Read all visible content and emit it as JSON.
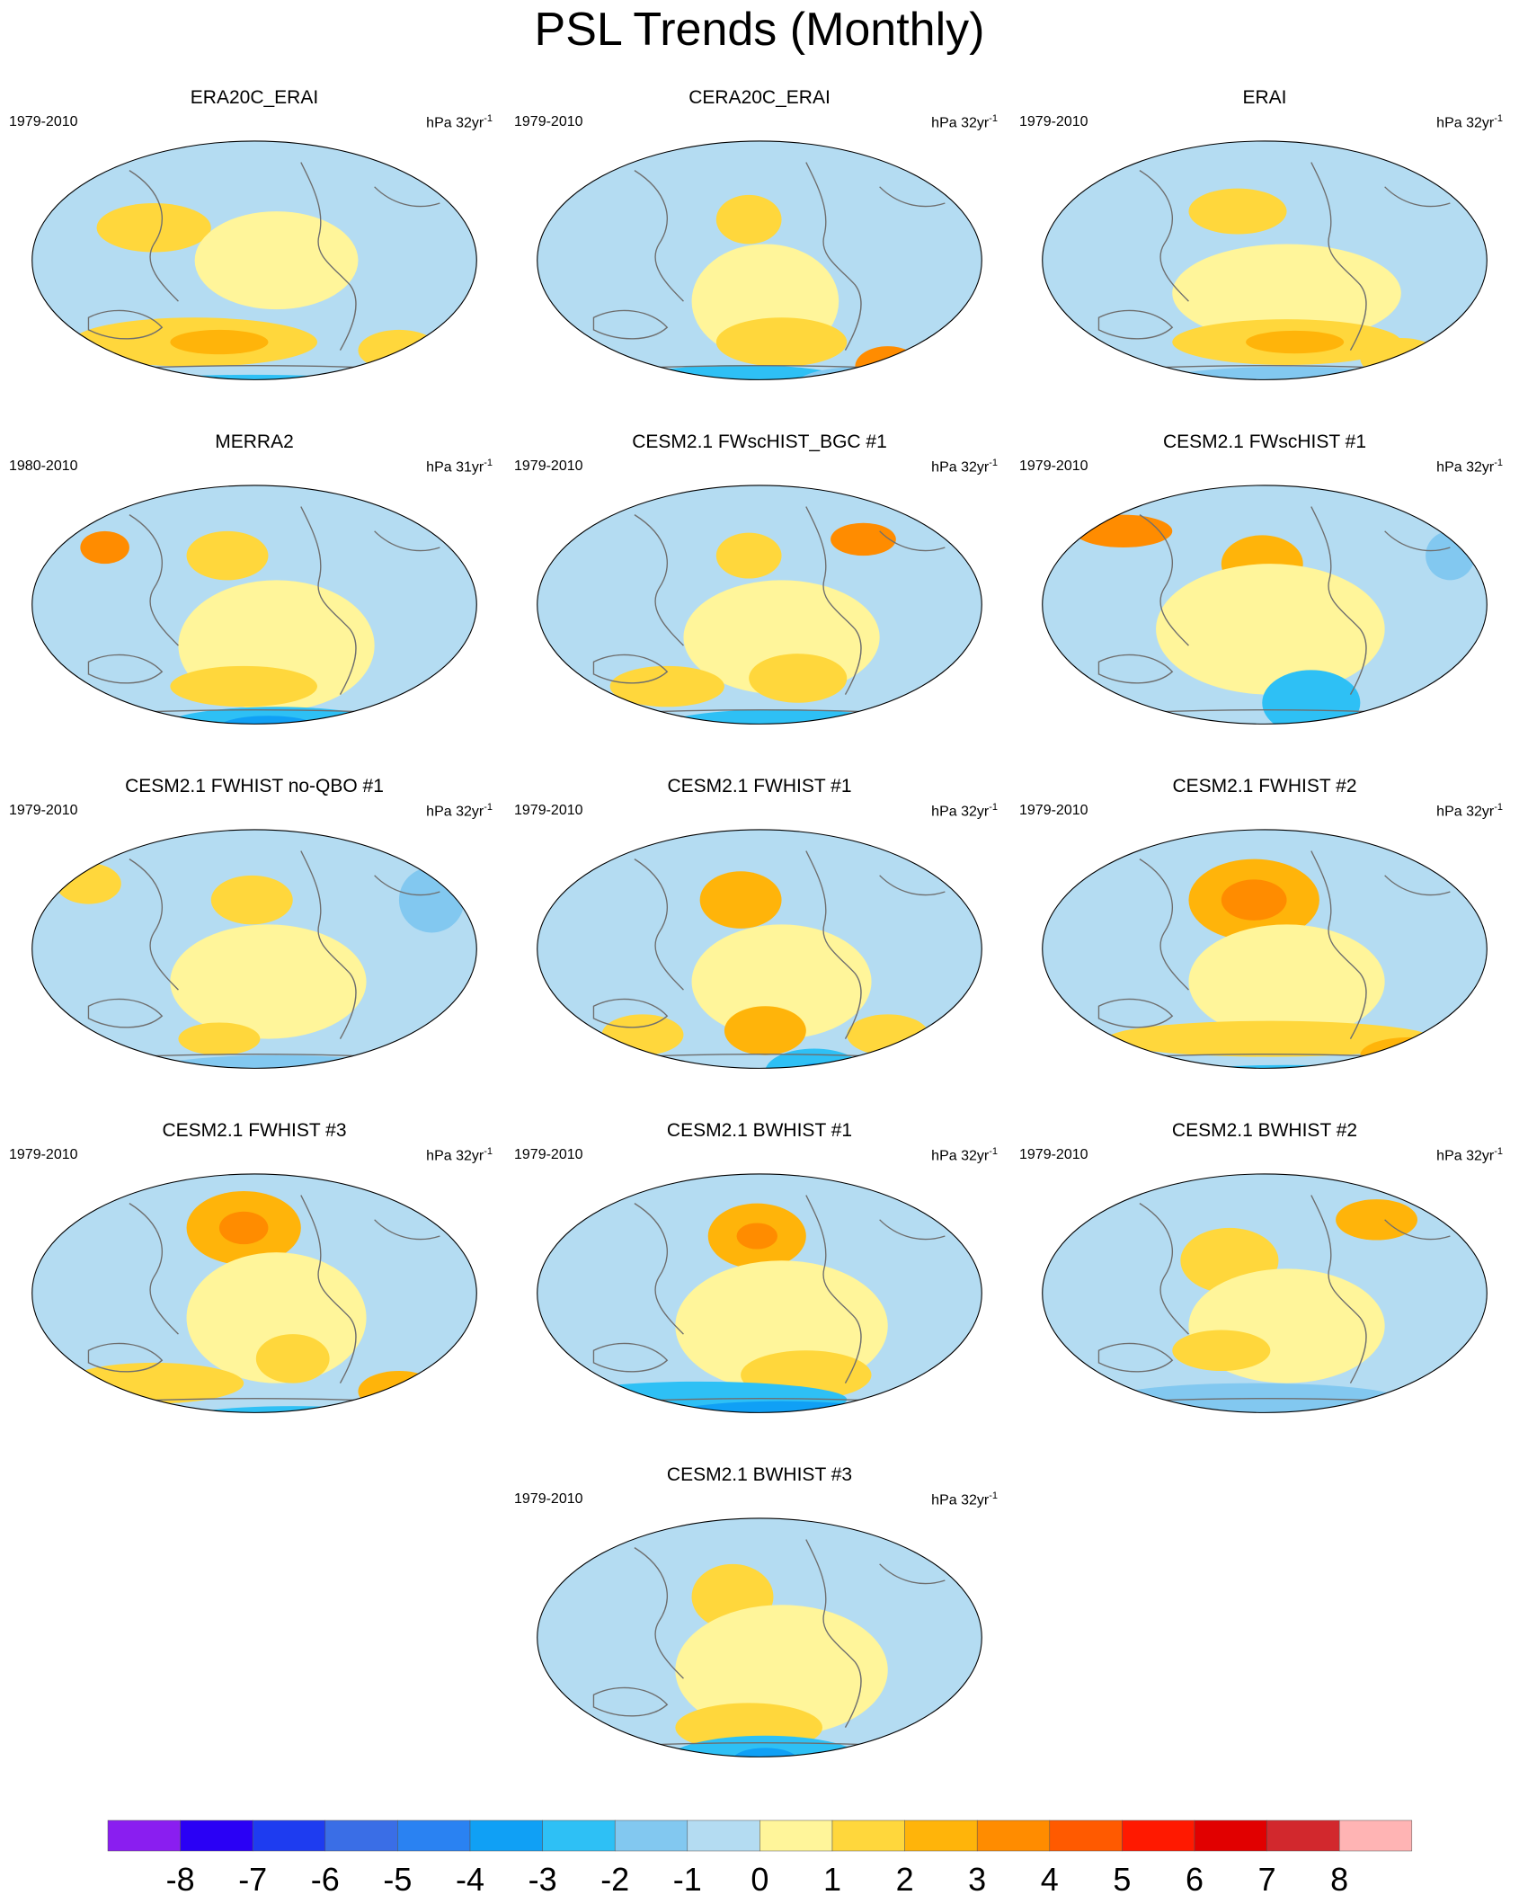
{
  "title": "PSL Trends (Monthly)",
  "panels": [
    {
      "title": "ERA20C_ERAI",
      "period": "1979-2010",
      "units": "hPa 32yr",
      "units_exp": "-1"
    },
    {
      "title": "CERA20C_ERAI",
      "period": "1979-2010",
      "units": "hPa 32yr",
      "units_exp": "-1"
    },
    {
      "title": "ERAI",
      "period": "1979-2010",
      "units": "hPa 32yr",
      "units_exp": "-1"
    },
    {
      "title": "MERRA2",
      "period": "1980-2010",
      "units": "hPa 31yr",
      "units_exp": "-1"
    },
    {
      "title": "CESM2.1 FWscHIST_BGC #1",
      "period": "1979-2010",
      "units": "hPa 32yr",
      "units_exp": "-1"
    },
    {
      "title": "CESM2.1 FWscHIST #1",
      "period": "1979-2010",
      "units": "hPa 32yr",
      "units_exp": "-1"
    },
    {
      "title": "CESM2.1 FWHIST no-QBO #1",
      "period": "1979-2010",
      "units": "hPa 32yr",
      "units_exp": "-1"
    },
    {
      "title": "CESM2.1 FWHIST #1",
      "period": "1979-2010",
      "units": "hPa 32yr",
      "units_exp": "-1"
    },
    {
      "title": "CESM2.1 FWHIST #2",
      "period": "1979-2010",
      "units": "hPa 32yr",
      "units_exp": "-1"
    },
    {
      "title": "CESM2.1 FWHIST #3",
      "period": "1979-2010",
      "units": "hPa 32yr",
      "units_exp": "-1"
    },
    {
      "title": "CESM2.1 BWHIST #1",
      "period": "1979-2010",
      "units": "hPa 32yr",
      "units_exp": "-1"
    },
    {
      "title": "CESM2.1 BWHIST #2",
      "period": "1979-2010",
      "units": "hPa 32yr",
      "units_exp": "-1"
    },
    {
      "title": "CESM2.1 BWHIST #3",
      "period": "1979-2010",
      "units": "hPa 32yr",
      "units_exp": "-1"
    }
  ],
  "colorbar": {
    "labels": [
      "-8",
      "-7",
      "-6",
      "-5",
      "-4",
      "-3",
      "-2",
      "-1",
      "0",
      "1",
      "2",
      "3",
      "4",
      "5",
      "6",
      "7",
      "8"
    ],
    "colors": [
      "#8a1ef0",
      "#2a00f5",
      "#1e3cf0",
      "#3a6ee6",
      "#2a82f2",
      "#10a0f5",
      "#2ec0f5",
      "#82c8f0",
      "#b4dcf2",
      "#fff59a",
      "#ffd73c",
      "#ffb40a",
      "#ff8c00",
      "#ff5a00",
      "#ff1900",
      "#e10000",
      "#d2282d",
      "#ffb4b4"
    ]
  },
  "colors": {
    "neg_light": "#b4dcf2",
    "neg_mid": "#82c8f0",
    "neg_strong": "#2ec0f5",
    "neg_deep": "#10a0f5",
    "pos_light": "#fff59a",
    "pos_mid": "#ffd73c",
    "pos_strong": "#ffb40a",
    "pos_deep": "#ff8c00",
    "coastline": "#6e6e6e"
  }
}
